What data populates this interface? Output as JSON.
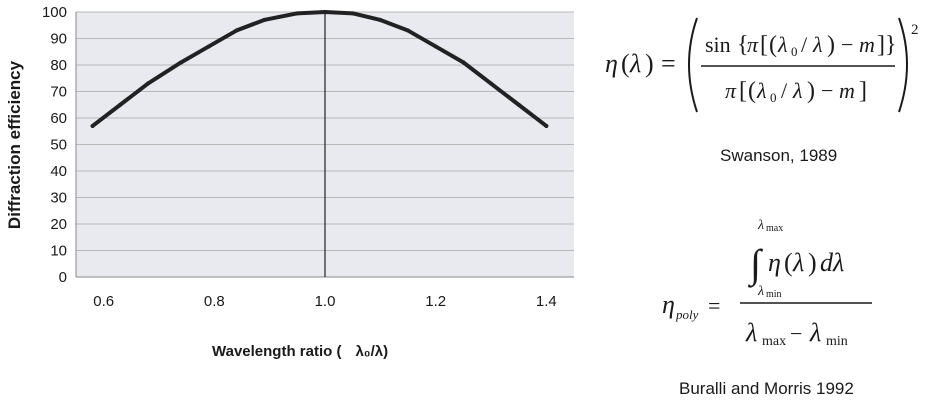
{
  "chart_data": {
    "type": "line",
    "ylabel": "Diffraction efficiency",
    "xlabel_text": "Wavelength ratio (",
    "xlabel_symbol": "λ₀/λ)",
    "x": [
      0.58,
      0.63,
      0.68,
      0.74,
      0.79,
      0.84,
      0.89,
      0.95,
      1.0,
      1.05,
      1.1,
      1.15,
      1.2,
      1.25,
      1.3,
      1.35,
      1.4
    ],
    "y": [
      57,
      65,
      73,
      81,
      87,
      93,
      97,
      99.5,
      100,
      99.5,
      97,
      93,
      87,
      81,
      73,
      65,
      57
    ],
    "xlim": [
      0.55,
      1.45
    ],
    "ylim": [
      0,
      100
    ],
    "xticks": [
      "0.6",
      "0.8",
      "1.0",
      "1.2",
      "1.4"
    ],
    "xtick_values": [
      0.6,
      0.8,
      1.0,
      1.2,
      1.4
    ],
    "yticks": [
      "0",
      "10",
      "20",
      "30",
      "40",
      "50",
      "60",
      "70",
      "80",
      "90",
      "100"
    ],
    "ytick_values": [
      0,
      10,
      20,
      30,
      40,
      50,
      60,
      70,
      80,
      90,
      100
    ],
    "vline_x": 1.0,
    "grid": true
  },
  "annotations": {
    "caption1": "Swanson, 1989",
    "caption2": "Buralli and Morris 1992"
  },
  "colors": {
    "plot_bg": "#e9eaf0",
    "grid": "#b8b8b8",
    "line": "#222222"
  }
}
